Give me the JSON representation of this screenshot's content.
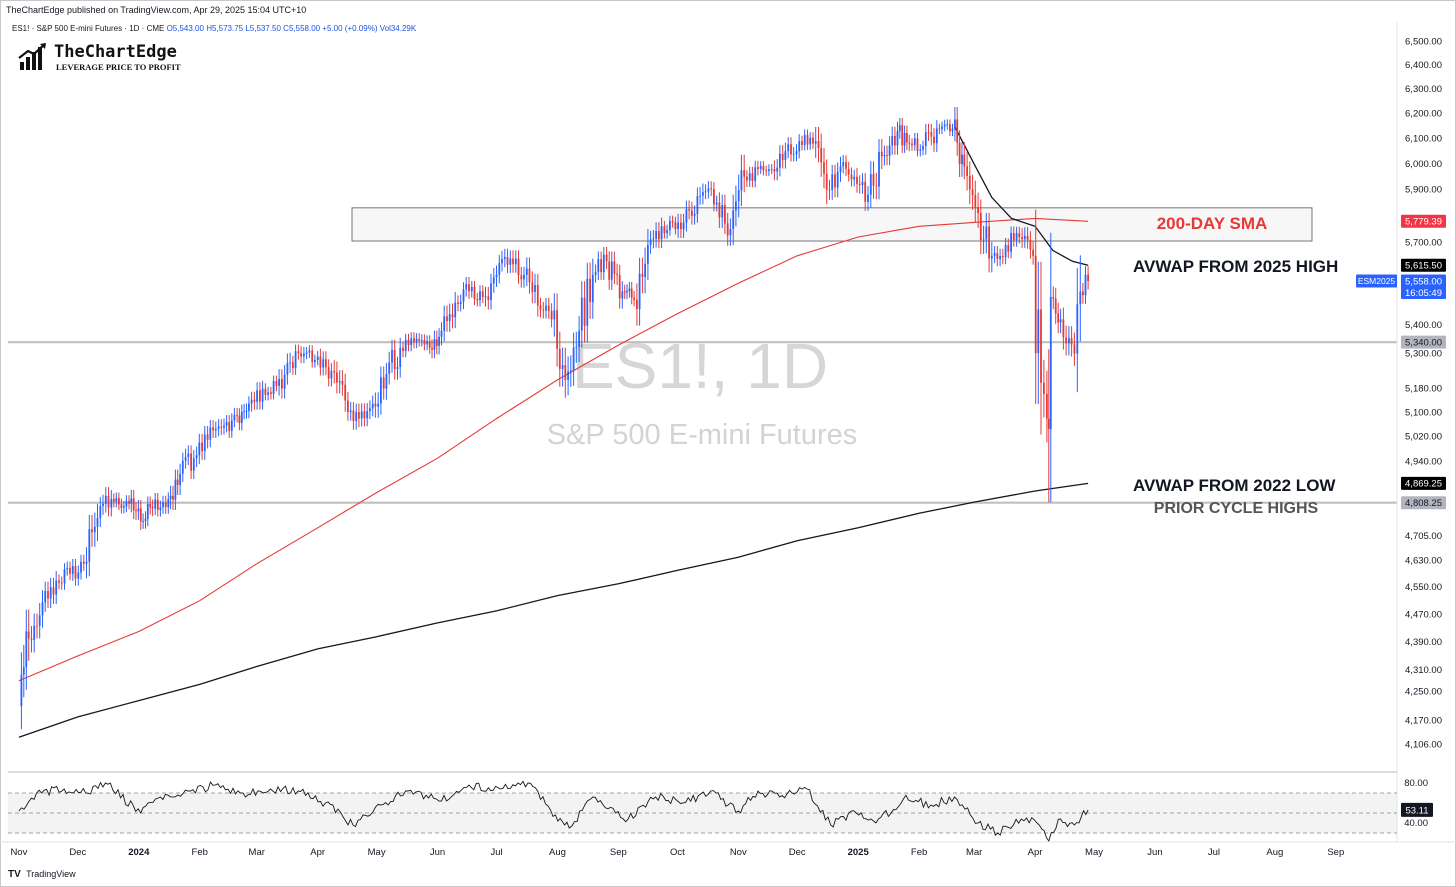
{
  "header": {
    "published": "TheChartEdge published on TradingView.com, Apr 29, 2025 15:04 UTC+10",
    "symbol_line": "ES1! · S&P 500 E-mini Futures · 1D · CME",
    "ohlc": {
      "open": "O5,543.00",
      "high": "H5,573.75",
      "low": "L5,537.50",
      "close": "C5,558.00",
      "change": "+5.00 (+0.09%)",
      "volume": "Vol34.29K"
    }
  },
  "logo": {
    "name": "TheChartEdge",
    "tagline": "LEVERAGE PRICE TO PROFIT"
  },
  "watermark": {
    "symbol": "ES1!, 1D",
    "description": "S&P 500 E-mini Futures"
  },
  "footer": {
    "brand": "TradingView"
  },
  "chart_data": [
    {
      "type": "line",
      "xlabels": [
        "Nov",
        "Dec",
        "2024",
        "Feb",
        "Mar",
        "Apr",
        "May",
        "Jun",
        "Jul",
        "Aug",
        "Sep",
        "Oct",
        "Nov",
        "Dec",
        "2025",
        "Feb",
        "Mar",
        "Apr",
        "May",
        "Jun",
        "Jul",
        "Aug",
        "Sep"
      ],
      "y_ticks": [
        "6,500.00",
        "6,400.00",
        "6,300.00",
        "6,200.00",
        "6,100.00",
        "6,000.00",
        "5,900.00",
        "5,700.00",
        "5,400.00",
        "5,300.00",
        "5,180.00",
        "5,100.00",
        "5,020.00",
        "4,940.00",
        "4,705.00",
        "4,630.00",
        "4,550.00",
        "4,470.00",
        "4,390.00",
        "4,310.00",
        "4,250.00",
        "4,170.00",
        "4,106.00"
      ],
      "scale": "log",
      "ylim": [
        4080,
        6540
      ],
      "series": [
        {
          "name": "ES1!",
          "style": "candles",
          "points": [
            [
              "2023-11-01",
              4210
            ],
            [
              "2023-11-06",
              4400
            ],
            [
              "2023-11-13",
              4505
            ],
            [
              "2023-11-20",
              4570
            ],
            [
              "2023-11-27",
              4590
            ],
            [
              "2023-12-04",
              4620
            ],
            [
              "2023-12-11",
              4760
            ],
            [
              "2023-12-18",
              4820
            ],
            [
              "2023-12-27",
              4805
            ],
            [
              "2024-01-02",
              4750
            ],
            [
              "2024-01-08",
              4790
            ],
            [
              "2024-01-16",
              4820
            ],
            [
              "2024-01-22",
              4900
            ],
            [
              "2024-01-29",
              4950
            ],
            [
              "2024-02-05",
              5010
            ],
            [
              "2024-02-12",
              5050
            ],
            [
              "2024-02-20",
              5090
            ],
            [
              "2024-02-26",
              5130
            ],
            [
              "2024-03-04",
              5180
            ],
            [
              "2024-03-11",
              5190
            ],
            [
              "2024-03-18",
              5270
            ],
            [
              "2024-03-25",
              5300
            ],
            [
              "2024-04-01",
              5290
            ],
            [
              "2024-04-08",
              5240
            ],
            [
              "2024-04-15",
              5140
            ],
            [
              "2024-04-22",
              5080
            ],
            [
              "2024-04-29",
              5130
            ],
            [
              "2024-05-06",
              5230
            ],
            [
              "2024-05-13",
              5320
            ],
            [
              "2024-05-20",
              5340
            ],
            [
              "2024-05-28",
              5320
            ],
            [
              "2024-06-03",
              5380
            ],
            [
              "2024-06-10",
              5480
            ],
            [
              "2024-06-17",
              5520
            ],
            [
              "2024-06-24",
              5500
            ],
            [
              "2024-07-01",
              5580
            ],
            [
              "2024-07-08",
              5640
            ],
            [
              "2024-07-15",
              5580
            ],
            [
              "2024-07-22",
              5470
            ],
            [
              "2024-07-29",
              5420
            ],
            [
              "2024-08-05",
              5210
            ],
            [
              "2024-08-12",
              5380
            ],
            [
              "2024-08-19",
              5580
            ],
            [
              "2024-08-26",
              5630
            ],
            [
              "2024-09-03",
              5520
            ],
            [
              "2024-09-09",
              5490
            ],
            [
              "2024-09-16",
              5690
            ],
            [
              "2024-09-23",
              5760
            ],
            [
              "2024-09-30",
              5750
            ],
            [
              "2024-10-07",
              5820
            ],
            [
              "2024-10-14",
              5890
            ],
            [
              "2024-10-21",
              5850
            ],
            [
              "2024-10-28",
              5750
            ],
            [
              "2024-11-04",
              5950
            ],
            [
              "2024-11-11",
              5980
            ],
            [
              "2024-11-18",
              5980
            ],
            [
              "2024-11-25",
              6050
            ],
            [
              "2024-12-02",
              6090
            ],
            [
              "2024-12-09",
              6080
            ],
            [
              "2024-12-16",
              5900
            ],
            [
              "2024-12-23",
              5990
            ],
            [
              "2024-12-30",
              5950
            ],
            [
              "2025-01-06",
              5880
            ],
            [
              "2025-01-13",
              6030
            ],
            [
              "2025-01-21",
              6130
            ],
            [
              "2025-01-27",
              6080
            ],
            [
              "2025-02-03",
              6070
            ],
            [
              "2025-02-10",
              6140
            ],
            [
              "2025-02-18",
              6140
            ],
            [
              "2025-02-24",
              5990
            ],
            [
              "2025-03-03",
              5810
            ],
            [
              "2025-03-10",
              5650
            ],
            [
              "2025-03-17",
              5690
            ],
            [
              "2025-03-24",
              5720
            ],
            [
              "2025-03-31",
              5650
            ],
            [
              "2025-04-04",
              5200
            ],
            [
              "2025-04-07",
              5080
            ],
            [
              "2025-04-09",
              5500
            ],
            [
              "2025-04-14",
              5420
            ],
            [
              "2025-04-21",
              5300
            ],
            [
              "2025-04-24",
              5520
            ],
            [
              "2025-04-28",
              5558
            ]
          ]
        },
        {
          "name": "200-DAY SMA",
          "color": "#e53935",
          "points": [
            [
              "2023-11-01",
              4280
            ],
            [
              "2023-12-01",
              4350
            ],
            [
              "2024-01-01",
              4420
            ],
            [
              "2024-02-01",
              4510
            ],
            [
              "2024-03-01",
              4620
            ],
            [
              "2024-04-01",
              4730
            ],
            [
              "2024-05-01",
              4840
            ],
            [
              "2024-06-01",
              4950
            ],
            [
              "2024-07-01",
              5080
            ],
            [
              "2024-08-01",
              5210
            ],
            [
              "2024-09-01",
              5330
            ],
            [
              "2024-10-01",
              5440
            ],
            [
              "2024-11-01",
              5550
            ],
            [
              "2024-12-01",
              5650
            ],
            [
              "2025-01-01",
              5720
            ],
            [
              "2025-02-01",
              5760
            ],
            [
              "2025-03-01",
              5775
            ],
            [
              "2025-04-01",
              5790
            ],
            [
              "2025-04-28",
              5779
            ]
          ]
        },
        {
          "name": "AVWAP FROM 2022 LOW",
          "color": "#131722",
          "points": [
            [
              "2023-11-01",
              4125
            ],
            [
              "2023-12-01",
              4180
            ],
            [
              "2024-01-01",
              4225
            ],
            [
              "2024-02-01",
              4270
            ],
            [
              "2024-03-01",
              4320
            ],
            [
              "2024-04-01",
              4370
            ],
            [
              "2024-05-01",
              4405
            ],
            [
              "2024-06-01",
              4445
            ],
            [
              "2024-07-01",
              4480
            ],
            [
              "2024-08-01",
              4525
            ],
            [
              "2024-09-01",
              4560
            ],
            [
              "2024-10-01",
              4600
            ],
            [
              "2024-11-01",
              4640
            ],
            [
              "2024-12-01",
              4690
            ],
            [
              "2025-01-01",
              4730
            ],
            [
              "2025-02-01",
              4775
            ],
            [
              "2025-03-01",
              4810
            ],
            [
              "2025-04-01",
              4845
            ],
            [
              "2025-04-28",
              4869.25
            ]
          ]
        },
        {
          "name": "AVWAP FROM 2025 HIGH",
          "color": "#131722",
          "points": [
            [
              "2025-02-19",
              6150
            ],
            [
              "2025-03-01",
              6000
            ],
            [
              "2025-03-10",
              5870
            ],
            [
              "2025-03-20",
              5790
            ],
            [
              "2025-04-01",
              5760
            ],
            [
              "2025-04-10",
              5670
            ],
            [
              "2025-04-20",
              5630
            ],
            [
              "2025-04-28",
              5615.5
            ]
          ]
        }
      ],
      "zones": [
        {
          "name": "resistance zone",
          "range": [
            5705,
            5830
          ]
        }
      ],
      "levels": [
        {
          "value": 5340,
          "label": "5,340.00"
        },
        {
          "value": 4808.25,
          "label": "4,808.25"
        }
      ],
      "annotations": [
        {
          "text": "200-DAY SMA",
          "color": "#e53935"
        },
        {
          "text": "AVWAP FROM 2025 HIGH",
          "color": "#131722"
        },
        {
          "text": "AVWAP FROM 2022 LOW",
          "color": "#131722"
        },
        {
          "text": "PRIOR CYCLE HIGHS",
          "color": "#555555"
        }
      ],
      "price_labels": [
        {
          "text": "5,779.39",
          "bg": "#f23645",
          "fg": "#ffffff",
          "value": 5779.39
        },
        {
          "text": "5,615.50",
          "bg": "#000000",
          "fg": "#ffffff",
          "value": 5615.5
        },
        {
          "text": "5,558.00",
          "bg": "#2962ff",
          "fg": "#ffffff",
          "value": 5558
        },
        {
          "text": "16:05:49",
          "bg": "#2962ff",
          "fg": "#ffffff",
          "value": 5558,
          "offset_row": 1
        },
        {
          "text": "5,340.00",
          "bg": "#b2b5be",
          "fg": "#131722",
          "value": 5340
        },
        {
          "text": "4,869.25",
          "bg": "#000000",
          "fg": "#ffffff",
          "value": 4869.25
        },
        {
          "text": "4,808.25",
          "bg": "#b2b5be",
          "fg": "#131722",
          "value": 4808.25
        }
      ],
      "contract_label": "ESM2025"
    },
    {
      "type": "line",
      "name": "RSI",
      "ylim": [
        25,
        85
      ],
      "y_ticks": [
        "80.00",
        "40.00"
      ],
      "bands": [
        70,
        30
      ],
      "last_value": "53.11",
      "points": [
        [
          "2023-11-01",
          52
        ],
        [
          "2023-11-10",
          70
        ],
        [
          "2023-11-24",
          74
        ],
        [
          "2023-12-05",
          70
        ],
        [
          "2023-12-15",
          80
        ],
        [
          "2024-01-02",
          50
        ],
        [
          "2024-01-12",
          66
        ],
        [
          "2024-01-26",
          72
        ],
        [
          "2024-02-09",
          78
        ],
        [
          "2024-02-23",
          70
        ],
        [
          "2024-03-08",
          74
        ],
        [
          "2024-03-22",
          72
        ],
        [
          "2024-04-05",
          60
        ],
        [
          "2024-04-19",
          38
        ],
        [
          "2024-05-03",
          58
        ],
        [
          "2024-05-17",
          72
        ],
        [
          "2024-06-03",
          62
        ],
        [
          "2024-06-17",
          78
        ],
        [
          "2024-07-03",
          74
        ],
        [
          "2024-07-17",
          80
        ],
        [
          "2024-07-31",
          48
        ],
        [
          "2024-08-07",
          35
        ],
        [
          "2024-08-19",
          66
        ],
        [
          "2024-09-06",
          44
        ],
        [
          "2024-09-20",
          66
        ],
        [
          "2024-10-04",
          60
        ],
        [
          "2024-10-18",
          72
        ],
        [
          "2024-11-01",
          52
        ],
        [
          "2024-11-11",
          72
        ],
        [
          "2024-11-22",
          66
        ],
        [
          "2024-12-06",
          74
        ],
        [
          "2024-12-18",
          38
        ],
        [
          "2024-12-31",
          50
        ],
        [
          "2025-01-10",
          40
        ],
        [
          "2025-01-24",
          64
        ],
        [
          "2025-02-07",
          58
        ],
        [
          "2025-02-19",
          66
        ],
        [
          "2025-03-03",
          40
        ],
        [
          "2025-03-13",
          30
        ],
        [
          "2025-03-25",
          44
        ],
        [
          "2025-04-02",
          40
        ],
        [
          "2025-04-08",
          22
        ],
        [
          "2025-04-14",
          44
        ],
        [
          "2025-04-21",
          38
        ],
        [
          "2025-04-28",
          53.11
        ]
      ]
    }
  ]
}
